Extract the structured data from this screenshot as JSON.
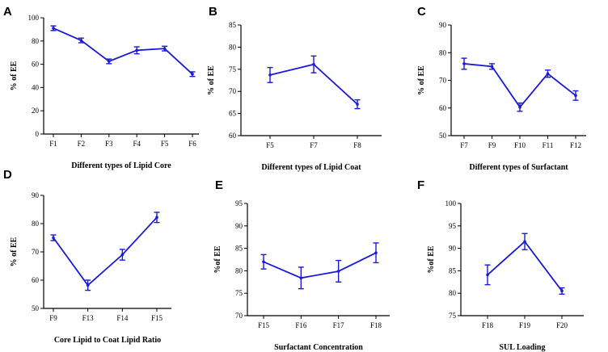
{
  "chart_data": [
    {
      "type": "line",
      "panel": "A",
      "categories": [
        "F1",
        "F2",
        "F3",
        "F4",
        "F5",
        "F6"
      ],
      "values": [
        91,
        80.5,
        62.5,
        72,
        73.5,
        51.5
      ],
      "errors": [
        2,
        2,
        2,
        3,
        2,
        2
      ],
      "xlabel": "Different types of Lipid Core",
      "ylabel": "% of EE",
      "ylim": [
        0,
        100
      ],
      "yticks": [
        "0",
        "20",
        "40",
        "60",
        "80",
        "100"
      ]
    },
    {
      "type": "line",
      "panel": "B",
      "categories": [
        "F5",
        "F7",
        "F8"
      ],
      "values": [
        73.7,
        76.1,
        67.1
      ],
      "errors": [
        1.7,
        1.9,
        1.0
      ],
      "xlabel": "Different types of Lipid Coat",
      "ylabel": "% of EE",
      "ylim": [
        60,
        85
      ],
      "yticks": [
        "60",
        "65",
        "70",
        "75",
        "80",
        "85"
      ]
    },
    {
      "type": "line",
      "panel": "C",
      "categories": [
        "F7",
        "F9",
        "F10",
        "F11",
        "F12"
      ],
      "values": [
        76,
        75,
        60.3,
        72.4,
        64.5
      ],
      "errors": [
        2.0,
        1.0,
        1.5,
        1.3,
        1.7
      ],
      "xlabel": "Different types of Surfactant",
      "ylabel": "% of EE",
      "ylim": [
        50,
        90
      ],
      "yticks": [
        "50",
        "60",
        "70",
        "80",
        "90"
      ]
    },
    {
      "type": "line",
      "panel": "D",
      "categories": [
        "F9",
        "F13",
        "F14",
        "F15"
      ],
      "values": [
        75,
        58.2,
        69,
        82.2
      ],
      "errors": [
        1.0,
        1.8,
        1.9,
        1.8
      ],
      "xlabel": "Core Lipid to Coat Lipid Ratio",
      "ylabel": "% of EE",
      "ylim": [
        50,
        90
      ],
      "yticks": [
        "50",
        "60",
        "70",
        "80",
        "90"
      ]
    },
    {
      "type": "line",
      "panel": "E",
      "categories": [
        "F15",
        "F16",
        "F17",
        "F18"
      ],
      "values": [
        82,
        78.4,
        79.9,
        84
      ],
      "errors": [
        1.6,
        2.4,
        2.4,
        2.2
      ],
      "xlabel": "Surfactant Concentration",
      "ylabel": "%of EE",
      "ylim": [
        70,
        95
      ],
      "yticks": [
        "70",
        "75",
        "80",
        "85",
        "90",
        "95"
      ]
    },
    {
      "type": "line",
      "panel": "F",
      "categories": [
        "F18",
        "F19",
        "F20"
      ],
      "values": [
        84.1,
        91.5,
        80.5
      ],
      "errors": [
        2.2,
        1.8,
        0.7
      ],
      "xlabel": "SUL Loading",
      "ylabel": "%of EE",
      "ylim": [
        75,
        100
      ],
      "yticks": [
        "75",
        "80",
        "85",
        "90",
        "95",
        "100"
      ]
    }
  ],
  "colors": {
    "series": "#1a1adb",
    "axis": "#000000"
  }
}
